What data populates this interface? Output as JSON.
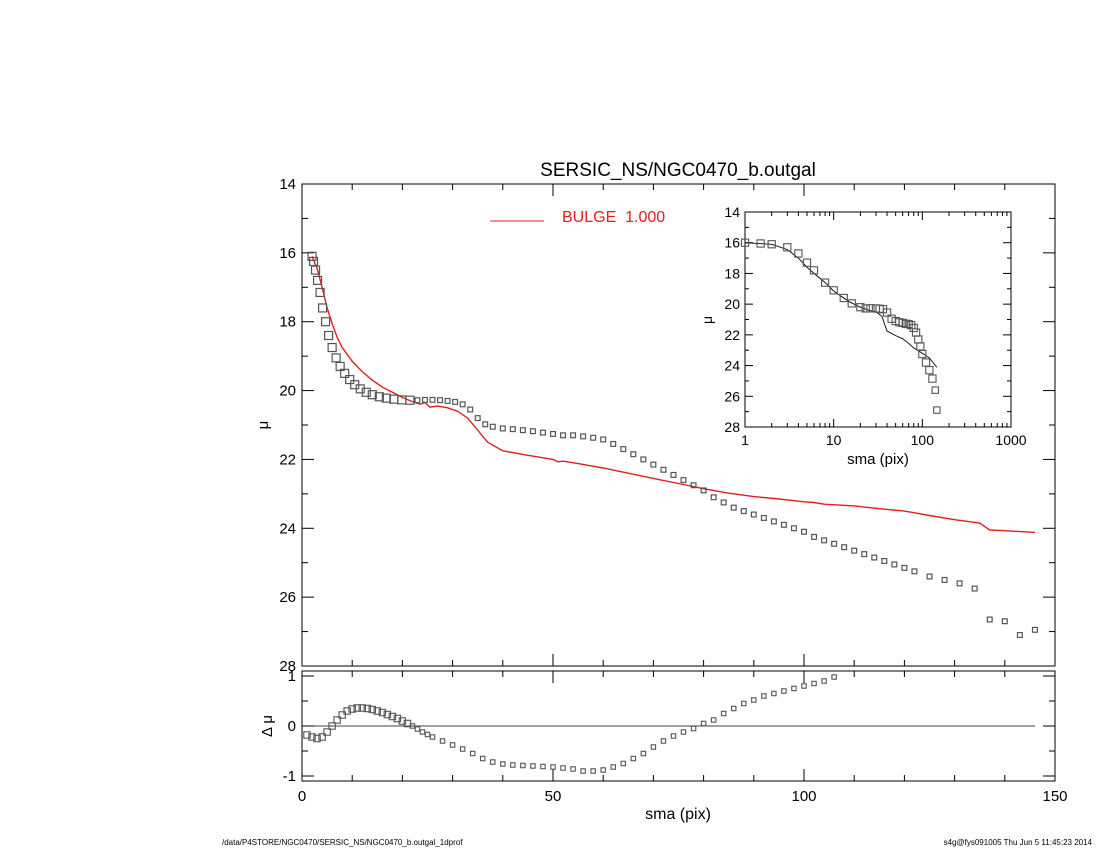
{
  "title": "SERSIC_NS/NGC0470_b.outgal",
  "footer": {
    "path": "/data/P4STORE/NGC0470/SERSIC_NS/NGC0470_b.outgal_1dprof",
    "stamp": "s4g@fys091005  Thu Jun  5 11:45:23 2014"
  },
  "colors": {
    "model": "#e02020",
    "data": "#555555",
    "axes": "#000000"
  },
  "chart_data": [
    {
      "type": "scatter",
      "panel": "main",
      "xlabel": "",
      "ylabel": "μ",
      "xlim": [
        0,
        150
      ],
      "ylim": [
        28,
        14
      ],
      "yticks": [
        "14",
        "16",
        "18",
        "20",
        "22",
        "24",
        "26",
        "28"
      ],
      "xticks": [],
      "legend": {
        "label": "BULGE  1.000",
        "placement": "top-center"
      },
      "series": [
        {
          "name": "",
          "kind": "data-points",
          "x": [
            2.0,
            2.3,
            2.7,
            3.1,
            3.6,
            4.1,
            4.7,
            5.3,
            6.0,
            6.8,
            7.6,
            8.5,
            9.5,
            10.5,
            11.6,
            12.8,
            14.0,
            15.4,
            16.8,
            18.3,
            19.9,
            21.5,
            23.0,
            24.5,
            26.0,
            27.5,
            29.0,
            30.5,
            32.0,
            33.5,
            35.0,
            36.5,
            38.0,
            40.0,
            42.0,
            44.0,
            46.0,
            48.0,
            50.0,
            52.0,
            54.0,
            56.0,
            58.0,
            60.0,
            62.0,
            64.0,
            66.0,
            68.0,
            70.0,
            72.0,
            74.0,
            76.0,
            78.0,
            80.0,
            82.0,
            84.0,
            86.0,
            88.0,
            90.0,
            92.0,
            94.0,
            96.0,
            98.0,
            100.0,
            102.0,
            104.0,
            106.0,
            108.0,
            110.0,
            112.0,
            114.0,
            116.0,
            118.0,
            120.0,
            122.0,
            125.0,
            128.0,
            131.0,
            134.0,
            137.0,
            140.0,
            143.0,
            146.0
          ],
          "y": [
            16.1,
            16.25,
            16.5,
            16.8,
            17.15,
            17.6,
            18.0,
            18.4,
            18.75,
            19.05,
            19.3,
            19.5,
            19.68,
            19.83,
            19.95,
            20.05,
            20.12,
            20.18,
            20.22,
            20.25,
            20.27,
            20.28,
            20.28,
            20.27,
            20.27,
            20.28,
            20.3,
            20.33,
            20.4,
            20.55,
            20.8,
            20.98,
            21.05,
            21.1,
            21.12,
            21.15,
            21.18,
            21.22,
            21.26,
            21.3,
            21.3,
            21.33,
            21.37,
            21.42,
            21.55,
            21.7,
            21.85,
            22.0,
            22.15,
            22.3,
            22.45,
            22.6,
            22.75,
            22.9,
            23.1,
            23.25,
            23.4,
            23.5,
            23.6,
            23.7,
            23.8,
            23.9,
            24.0,
            24.1,
            24.25,
            24.35,
            24.45,
            24.55,
            24.65,
            24.75,
            24.85,
            24.95,
            25.05,
            25.15,
            25.25,
            25.4,
            25.5,
            25.6,
            25.75,
            26.65,
            26.7,
            27.1,
            26.95
          ]
        },
        {
          "name": "BULGE  1.000",
          "kind": "model-line",
          "x": [
            2.0,
            3.0,
            4.0,
            5.0,
            6.0,
            7.0,
            8.0,
            10.0,
            12.0,
            14.0,
            16.0,
            18.0,
            20.0,
            22.0,
            23.5,
            24.5,
            25.5,
            27.0,
            29.0,
            31.0,
            33.0,
            35.0,
            37.0,
            40.0,
            45.0,
            50.0,
            51.0,
            52.0,
            55.0,
            60.0,
            65.0,
            70.0,
            75.0,
            80.0,
            85.0,
            90.0,
            95.0,
            100.0,
            102.0,
            104.0,
            110.0,
            115.0,
            120.0,
            122.0,
            125.0,
            130.0,
            135.0,
            137.0,
            140.0,
            146.0
          ],
          "y": [
            16.1,
            16.45,
            17.0,
            17.6,
            18.05,
            18.45,
            18.75,
            19.15,
            19.45,
            19.7,
            19.9,
            20.05,
            20.2,
            20.32,
            20.4,
            20.35,
            20.48,
            20.45,
            20.5,
            20.6,
            20.8,
            21.15,
            21.5,
            21.75,
            21.88,
            22.0,
            22.07,
            22.05,
            22.12,
            22.25,
            22.4,
            22.55,
            22.7,
            22.85,
            22.98,
            23.08,
            23.15,
            23.23,
            23.25,
            23.3,
            23.35,
            23.43,
            23.5,
            23.55,
            23.63,
            23.75,
            23.85,
            24.05,
            24.07,
            24.12
          ]
        }
      ]
    },
    {
      "type": "scatter",
      "panel": "residual",
      "xlabel": "sma (pix)",
      "ylabel": "Δ μ",
      "xlim": [
        0,
        150
      ],
      "ylim": [
        -1.1,
        1.1
      ],
      "yticks": [
        "-1",
        "0",
        "1"
      ],
      "xticks": [
        "0",
        "50",
        "100",
        "150"
      ],
      "series": [
        {
          "name": "",
          "kind": "residual-points",
          "x": [
            1.0,
            2.0,
            3.0,
            4.0,
            5.0,
            6.0,
            7.0,
            8.0,
            9.0,
            10.0,
            11.0,
            12.0,
            13.0,
            14.0,
            15.0,
            16.0,
            17.0,
            18.0,
            19.0,
            20.0,
            21.0,
            22.0,
            23.0,
            24.0,
            25.0,
            26.0,
            28.0,
            30.0,
            32.0,
            34.0,
            36.0,
            38.0,
            40.0,
            42.0,
            44.0,
            46.0,
            48.0,
            50.0,
            52.0,
            54.0,
            56.0,
            58.0,
            60.0,
            62.0,
            64.0,
            66.0,
            68.0,
            70.0,
            72.0,
            74.0,
            76.0,
            78.0,
            80.0,
            82.0,
            84.0,
            86.0,
            88.0,
            90.0,
            92.0,
            94.0,
            96.0,
            98.0,
            100.0,
            102.0,
            104.0,
            106.0
          ],
          "y": [
            -0.18,
            -0.22,
            -0.25,
            -0.22,
            -0.12,
            0.0,
            0.12,
            0.22,
            0.3,
            0.34,
            0.36,
            0.36,
            0.35,
            0.33,
            0.3,
            0.27,
            0.23,
            0.19,
            0.15,
            0.1,
            0.05,
            0.0,
            -0.06,
            -0.12,
            -0.17,
            -0.22,
            -0.3,
            -0.38,
            -0.46,
            -0.55,
            -0.65,
            -0.72,
            -0.76,
            -0.78,
            -0.79,
            -0.8,
            -0.81,
            -0.82,
            -0.84,
            -0.86,
            -0.9,
            -0.9,
            -0.88,
            -0.82,
            -0.75,
            -0.65,
            -0.55,
            -0.42,
            -0.3,
            -0.2,
            -0.12,
            -0.05,
            0.05,
            0.12,
            0.25,
            0.35,
            0.45,
            0.52,
            0.6,
            0.65,
            0.7,
            0.75,
            0.8,
            0.85,
            0.9,
            0.98
          ]
        }
      ]
    },
    {
      "type": "scatter",
      "panel": "inset",
      "xscale": "log",
      "xlabel": "sma (pix)",
      "ylabel": "μ",
      "xlim": [
        1,
        1000
      ],
      "ylim": [
        28,
        14
      ],
      "yticks": [
        "14",
        "16",
        "18",
        "20",
        "22",
        "24",
        "26",
        "28"
      ],
      "xticks": [
        "1",
        "10",
        "100",
        "1000"
      ],
      "series": [
        {
          "name": "",
          "kind": "data-points",
          "x": [
            1.0,
            1.5,
            2.0,
            3.0,
            4.0,
            5.0,
            6.0,
            8.0,
            10.0,
            13.0,
            16.0,
            20.0,
            23.0,
            26.0,
            30.0,
            33.0,
            36.0,
            40.0,
            45.0,
            50.0,
            55.0,
            60.0,
            65.0,
            70.0,
            75.0,
            80.0,
            85.0,
            90.0,
            95.0,
            100.0,
            110.0,
            120.0,
            130.0,
            140.0,
            146.0
          ],
          "y": [
            16.0,
            16.05,
            16.1,
            16.3,
            16.7,
            17.3,
            17.8,
            18.6,
            19.1,
            19.6,
            19.95,
            20.2,
            20.28,
            20.27,
            20.28,
            20.3,
            20.33,
            20.55,
            20.95,
            21.1,
            21.18,
            21.22,
            21.28,
            21.3,
            21.37,
            21.55,
            21.85,
            22.3,
            22.75,
            23.25,
            23.8,
            24.3,
            24.85,
            25.6,
            26.9
          ]
        },
        {
          "name": "",
          "kind": "model-line",
          "x": [
            1.0,
            2.0,
            3.0,
            4.0,
            5.0,
            6.0,
            8.0,
            10.0,
            15.0,
            20.0,
            25.0,
            30.0,
            35.0,
            40.0,
            50.0,
            60.0,
            70.0,
            80.0,
            100.0,
            120.0,
            146.0
          ],
          "y": [
            16.0,
            16.1,
            16.45,
            17.0,
            17.6,
            18.0,
            18.6,
            19.15,
            19.85,
            20.2,
            20.4,
            20.5,
            20.8,
            21.75,
            22.05,
            22.25,
            22.55,
            22.85,
            23.2,
            23.5,
            24.12
          ]
        }
      ]
    }
  ]
}
